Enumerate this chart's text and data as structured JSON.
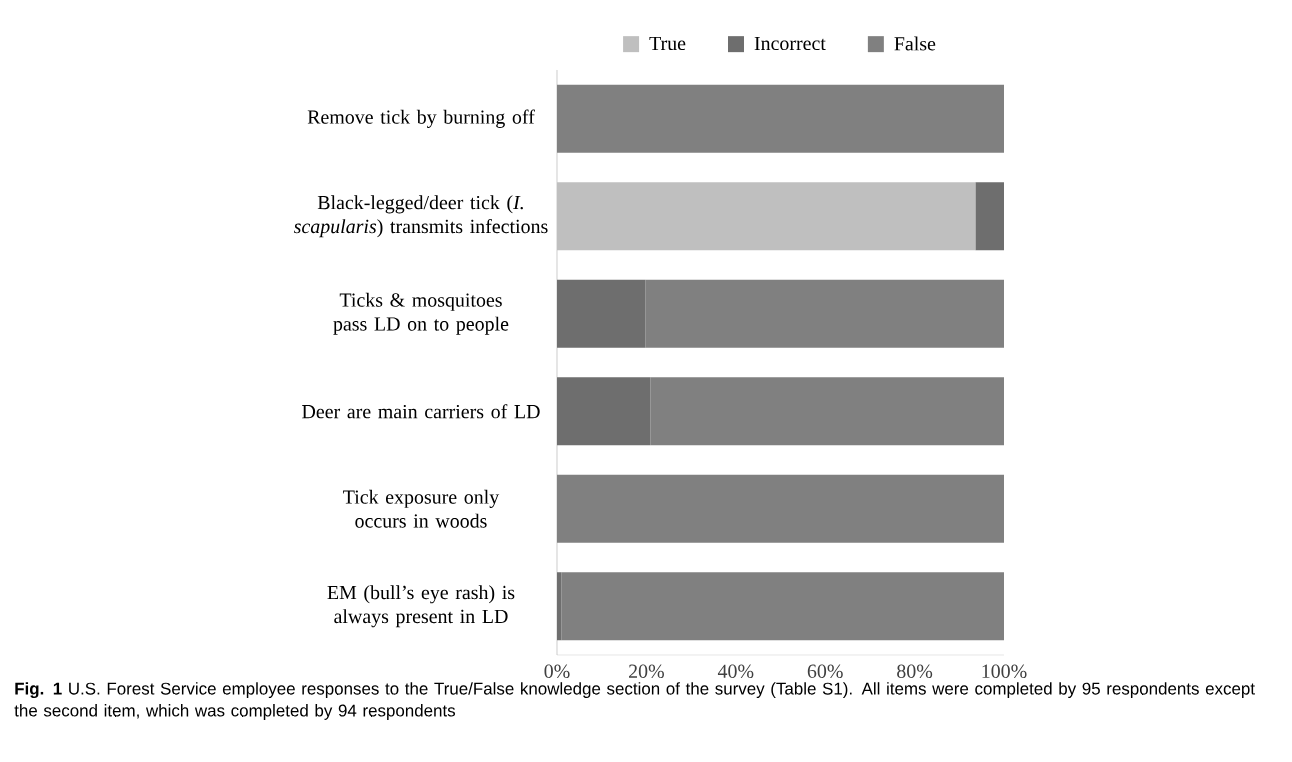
{
  "chart_data": {
    "type": "bar",
    "orientation": "horizontal",
    "stacked": true,
    "categories": [
      "Remove tick by burning off",
      "Black-legged/deer tick (*I. scapularis*) transmits infections",
      "Ticks & mosquitoes pass LD on to people",
      "Deer are main carriers of LD",
      "Tick exposure only occurs in woods",
      "EM (bull’s eye rash) is always present in LD"
    ],
    "series": [
      {
        "name": "True",
        "color": "#bfbfbf",
        "values": [
          0,
          93.6,
          0,
          0,
          0,
          0
        ]
      },
      {
        "name": "Incorrect",
        "color": "#6e6e6e",
        "values": [
          0,
          6.4,
          19.8,
          20.9,
          0,
          1
        ]
      },
      {
        "name": "False",
        "color": "#808080",
        "values": [
          100,
          0,
          80.2,
          79.1,
          100,
          99
        ]
      }
    ],
    "xlim": [
      0,
      100
    ],
    "xticks": [
      {
        "value": 0,
        "label": "0%"
      },
      {
        "value": 20,
        "label": "20%"
      },
      {
        "value": 40,
        "label": "40%"
      },
      {
        "value": 60,
        "label": "60%"
      },
      {
        "value": 80,
        "label": "80%"
      },
      {
        "value": 100,
        "label": "100%"
      }
    ],
    "grid": false,
    "legend": "top",
    "annotations": [
      "**Fig. 1** U.S. Forest Service employee responses to the True/False knowledge section of the survey (Table S1). All items were completed by 95 respondents except the second item, which was completed by 94 respondents"
    ]
  }
}
